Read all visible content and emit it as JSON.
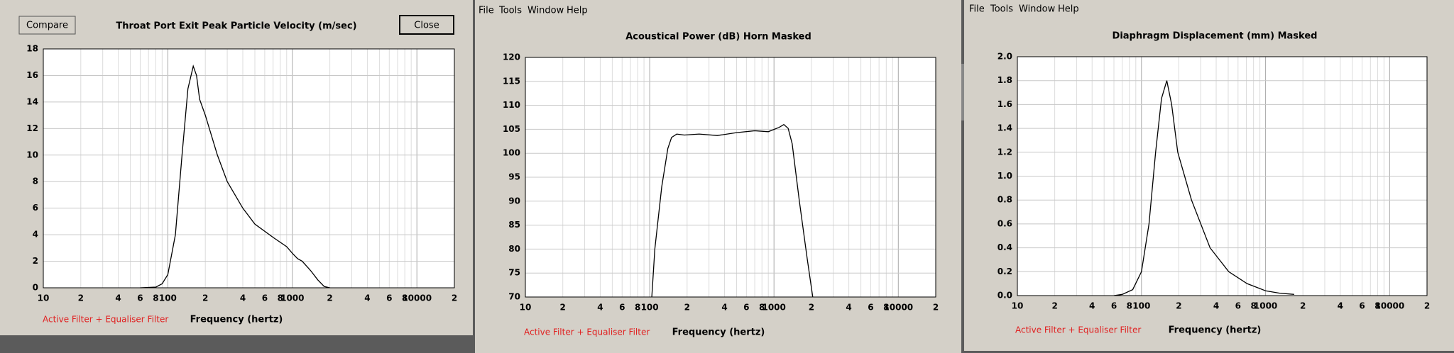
{
  "windows": [
    {
      "buttons": [
        "Compare",
        "Close"
      ]
    },
    {
      "menu": [
        "File",
        "Tools",
        "Window",
        "Help"
      ]
    },
    {
      "menu": [
        "File",
        "Tools",
        "Window",
        "Help"
      ]
    }
  ],
  "chart_data": [
    {
      "type": "line",
      "title": "Throat Port Exit Peak Particle Velocity (m/sec)",
      "xlabel": "Frequency (hertz)",
      "note": "Active Filter + Equaliser Filter",
      "note_color": "#e02020",
      "color": "#000000",
      "log_x": true,
      "grid": true,
      "x": [
        60,
        80,
        90,
        100,
        115,
        130,
        145,
        160,
        170,
        180,
        200,
        250,
        300,
        400,
        500,
        700,
        900,
        1000,
        1100,
        1200,
        1400,
        1600,
        1800,
        2000
      ],
      "values": [
        0,
        0.05,
        0.3,
        1,
        4,
        10,
        15,
        16.7,
        16,
        14.2,
        13,
        10,
        8,
        6,
        4.8,
        3.8,
        3.1,
        2.6,
        2.2,
        2,
        1.3,
        0.6,
        0.1,
        0
      ],
      "xlim": [
        10,
        20000
      ],
      "ylim": [
        0,
        18
      ],
      "xticks": [
        10,
        {
          "value": 20,
          "label": "2"
        },
        {
          "value": 40,
          "label": "4"
        },
        {
          "value": 60,
          "label": "6"
        },
        {
          "value": 80,
          "label": "8"
        },
        100,
        {
          "value": 200,
          "label": "2"
        },
        {
          "value": 400,
          "label": "4"
        },
        {
          "value": 600,
          "label": "6"
        },
        {
          "value": 800,
          "label": "8"
        },
        1000,
        {
          "value": 2000,
          "label": "2"
        },
        {
          "value": 4000,
          "label": "4"
        },
        {
          "value": 6000,
          "label": "6"
        },
        {
          "value": 8000,
          "label": "8"
        },
        10000,
        {
          "value": 20000,
          "label": "2"
        }
      ],
      "xminor": [
        30,
        50,
        70,
        90,
        300,
        500,
        700,
        900,
        3000,
        5000,
        7000,
        9000
      ],
      "yticks": [
        0,
        2,
        4,
        6,
        8,
        10,
        12,
        14,
        16,
        18
      ]
    },
    {
      "type": "line",
      "title": "Acoustical Power (dB)   Horn   Masked",
      "xlabel": "Frequency (hertz)",
      "note": "Active Filter + Equaliser Filter",
      "note_color": "#e02020",
      "color": "#000000",
      "log_x": true,
      "grid": true,
      "x": [
        104,
        110,
        125,
        140,
        150,
        165,
        190,
        250,
        350,
        500,
        700,
        900,
        1100,
        1200,
        1300,
        1400,
        1600,
        1850,
        2050
      ],
      "values": [
        70,
        80,
        93,
        101,
        103.3,
        104,
        103.8,
        104,
        103.7,
        104.3,
        104.7,
        104.5,
        105.4,
        106,
        105.2,
        102,
        90,
        78,
        70
      ],
      "xlim": [
        10,
        20000
      ],
      "ylim": [
        70,
        120
      ],
      "xticks": [
        10,
        {
          "value": 20,
          "label": "2"
        },
        {
          "value": 40,
          "label": "4"
        },
        {
          "value": 60,
          "label": "6"
        },
        {
          "value": 80,
          "label": "8"
        },
        100,
        {
          "value": 200,
          "label": "2"
        },
        {
          "value": 400,
          "label": "4"
        },
        {
          "value": 600,
          "label": "6"
        },
        {
          "value": 800,
          "label": "8"
        },
        1000,
        {
          "value": 2000,
          "label": "2"
        },
        {
          "value": 4000,
          "label": "4"
        },
        {
          "value": 6000,
          "label": "6"
        },
        {
          "value": 8000,
          "label": "8"
        },
        10000,
        {
          "value": 20000,
          "label": "2"
        }
      ],
      "xminor": [
        30,
        50,
        70,
        90,
        300,
        500,
        700,
        900,
        3000,
        5000,
        7000,
        9000
      ],
      "yticks": [
        70,
        75,
        80,
        85,
        90,
        95,
        100,
        105,
        110,
        115,
        120
      ]
    },
    {
      "type": "line",
      "title": "Diaphragm Displacement (mm)   Masked",
      "xlabel": "Frequency (hertz)",
      "note": "Active Filter + Equaliser Filter",
      "note_color": "#e02020",
      "color": "#000000",
      "log_x": true,
      "grid": true,
      "x": [
        60,
        70,
        85,
        100,
        115,
        130,
        145,
        160,
        175,
        196,
        253,
        357,
        505,
        710,
        1000,
        1300,
        1700
      ],
      "values": [
        0,
        0.01,
        0.05,
        0.2,
        0.6,
        1.2,
        1.65,
        1.8,
        1.6,
        1.2,
        0.8,
        0.4,
        0.2,
        0.1,
        0.04,
        0.02,
        0.01
      ],
      "xlim": [
        10,
        20000
      ],
      "ylim": [
        0,
        2
      ],
      "xticks": [
        10,
        {
          "value": 20,
          "label": "2"
        },
        {
          "value": 40,
          "label": "4"
        },
        {
          "value": 60,
          "label": "6"
        },
        {
          "value": 80,
          "label": "8"
        },
        100,
        {
          "value": 200,
          "label": "2"
        },
        {
          "value": 400,
          "label": "4"
        },
        {
          "value": 600,
          "label": "6"
        },
        {
          "value": 800,
          "label": "8"
        },
        1000,
        {
          "value": 2000,
          "label": "2"
        },
        {
          "value": 4000,
          "label": "4"
        },
        {
          "value": 6000,
          "label": "6"
        },
        {
          "value": 8000,
          "label": "8"
        },
        10000,
        {
          "value": 20000,
          "label": "2"
        }
      ],
      "xminor": [
        30,
        50,
        70,
        90,
        300,
        500,
        700,
        900,
        3000,
        5000,
        7000,
        9000
      ],
      "yticks": [
        {
          "value": 0,
          "label": "0.0"
        },
        0.2,
        0.4,
        0.6,
        0.8,
        {
          "value": 1,
          "label": "1.0"
        },
        1.2,
        1.4,
        1.6,
        1.8,
        {
          "value": 2,
          "label": "2.0"
        }
      ]
    }
  ]
}
